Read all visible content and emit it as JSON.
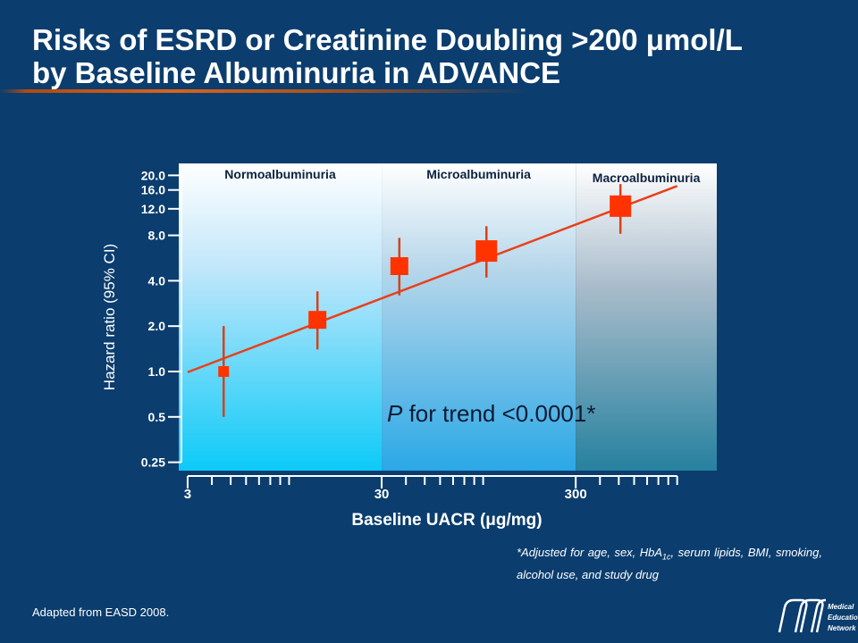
{
  "slide": {
    "title_line1": "Risks of ESRD or Creatinine Doubling >200 μmol/L",
    "title_line2": "by Baseline Albuminuria in ADVANCE",
    "footnote_prefix": "*Adjusted for age, sex, HbA",
    "footnote_sub": "1c",
    "footnote_suffix": ", serum lipids, BMI, smoking, alcohol use, and study drug",
    "source": "Adapted from EASD 2008.",
    "logo_text": [
      "Medical",
      "Education",
      "Network"
    ]
  },
  "colors": {
    "background": "#0b3d6e",
    "marker": "#ff3300",
    "trend_line": "#e8401a",
    "error_bar": "#d8401a"
  },
  "chart_data": {
    "type": "scatter",
    "xlabel": "Baseline UACR (μg/mg)",
    "ylabel": "Hazard ratio (95% CI)",
    "x_scale": "log",
    "y_scale": "log",
    "xlim": [
      2.7,
      1600
    ],
    "ylim": [
      0.22,
      24
    ],
    "x_ticks": [
      3,
      30,
      300
    ],
    "y_ticks": [
      0.25,
      0.5,
      1.0,
      2.0,
      4.0,
      8.0,
      12.0,
      16.0,
      20.0
    ],
    "y_tick_labels": [
      "0.25",
      "0.5",
      "1.0",
      "2.0",
      "4.0",
      "8.0",
      "12.0",
      "16.0",
      "20.0"
    ],
    "regions": [
      {
        "label": "Normoalbuminuria",
        "from": 2.7,
        "to": 30
      },
      {
        "label": "Microalbuminuria",
        "from": 30,
        "to": 300
      },
      {
        "label": "Macroalbuminuria",
        "from": 300,
        "to": 1600
      }
    ],
    "points": [
      {
        "x": 4.6,
        "hr": 1.0,
        "ci": [
          0.5,
          2.0
        ],
        "weight": "small"
      },
      {
        "x": 14,
        "hr": 2.2,
        "ci": [
          1.4,
          3.4
        ],
        "weight": "medium"
      },
      {
        "x": 37,
        "hr": 5.0,
        "ci": [
          3.2,
          7.7
        ],
        "weight": "medium"
      },
      {
        "x": 104,
        "hr": 6.3,
        "ci": [
          4.2,
          9.2
        ],
        "weight": "large"
      },
      {
        "x": 510,
        "hr": 12.5,
        "ci": [
          8.2,
          17.5
        ],
        "weight": "large"
      }
    ],
    "trend_line": {
      "x": [
        3,
        1000
      ],
      "y": [
        0.99,
        17.0
      ]
    },
    "annotation": {
      "italic": "P",
      "text": " for trend <0.0001*"
    }
  }
}
